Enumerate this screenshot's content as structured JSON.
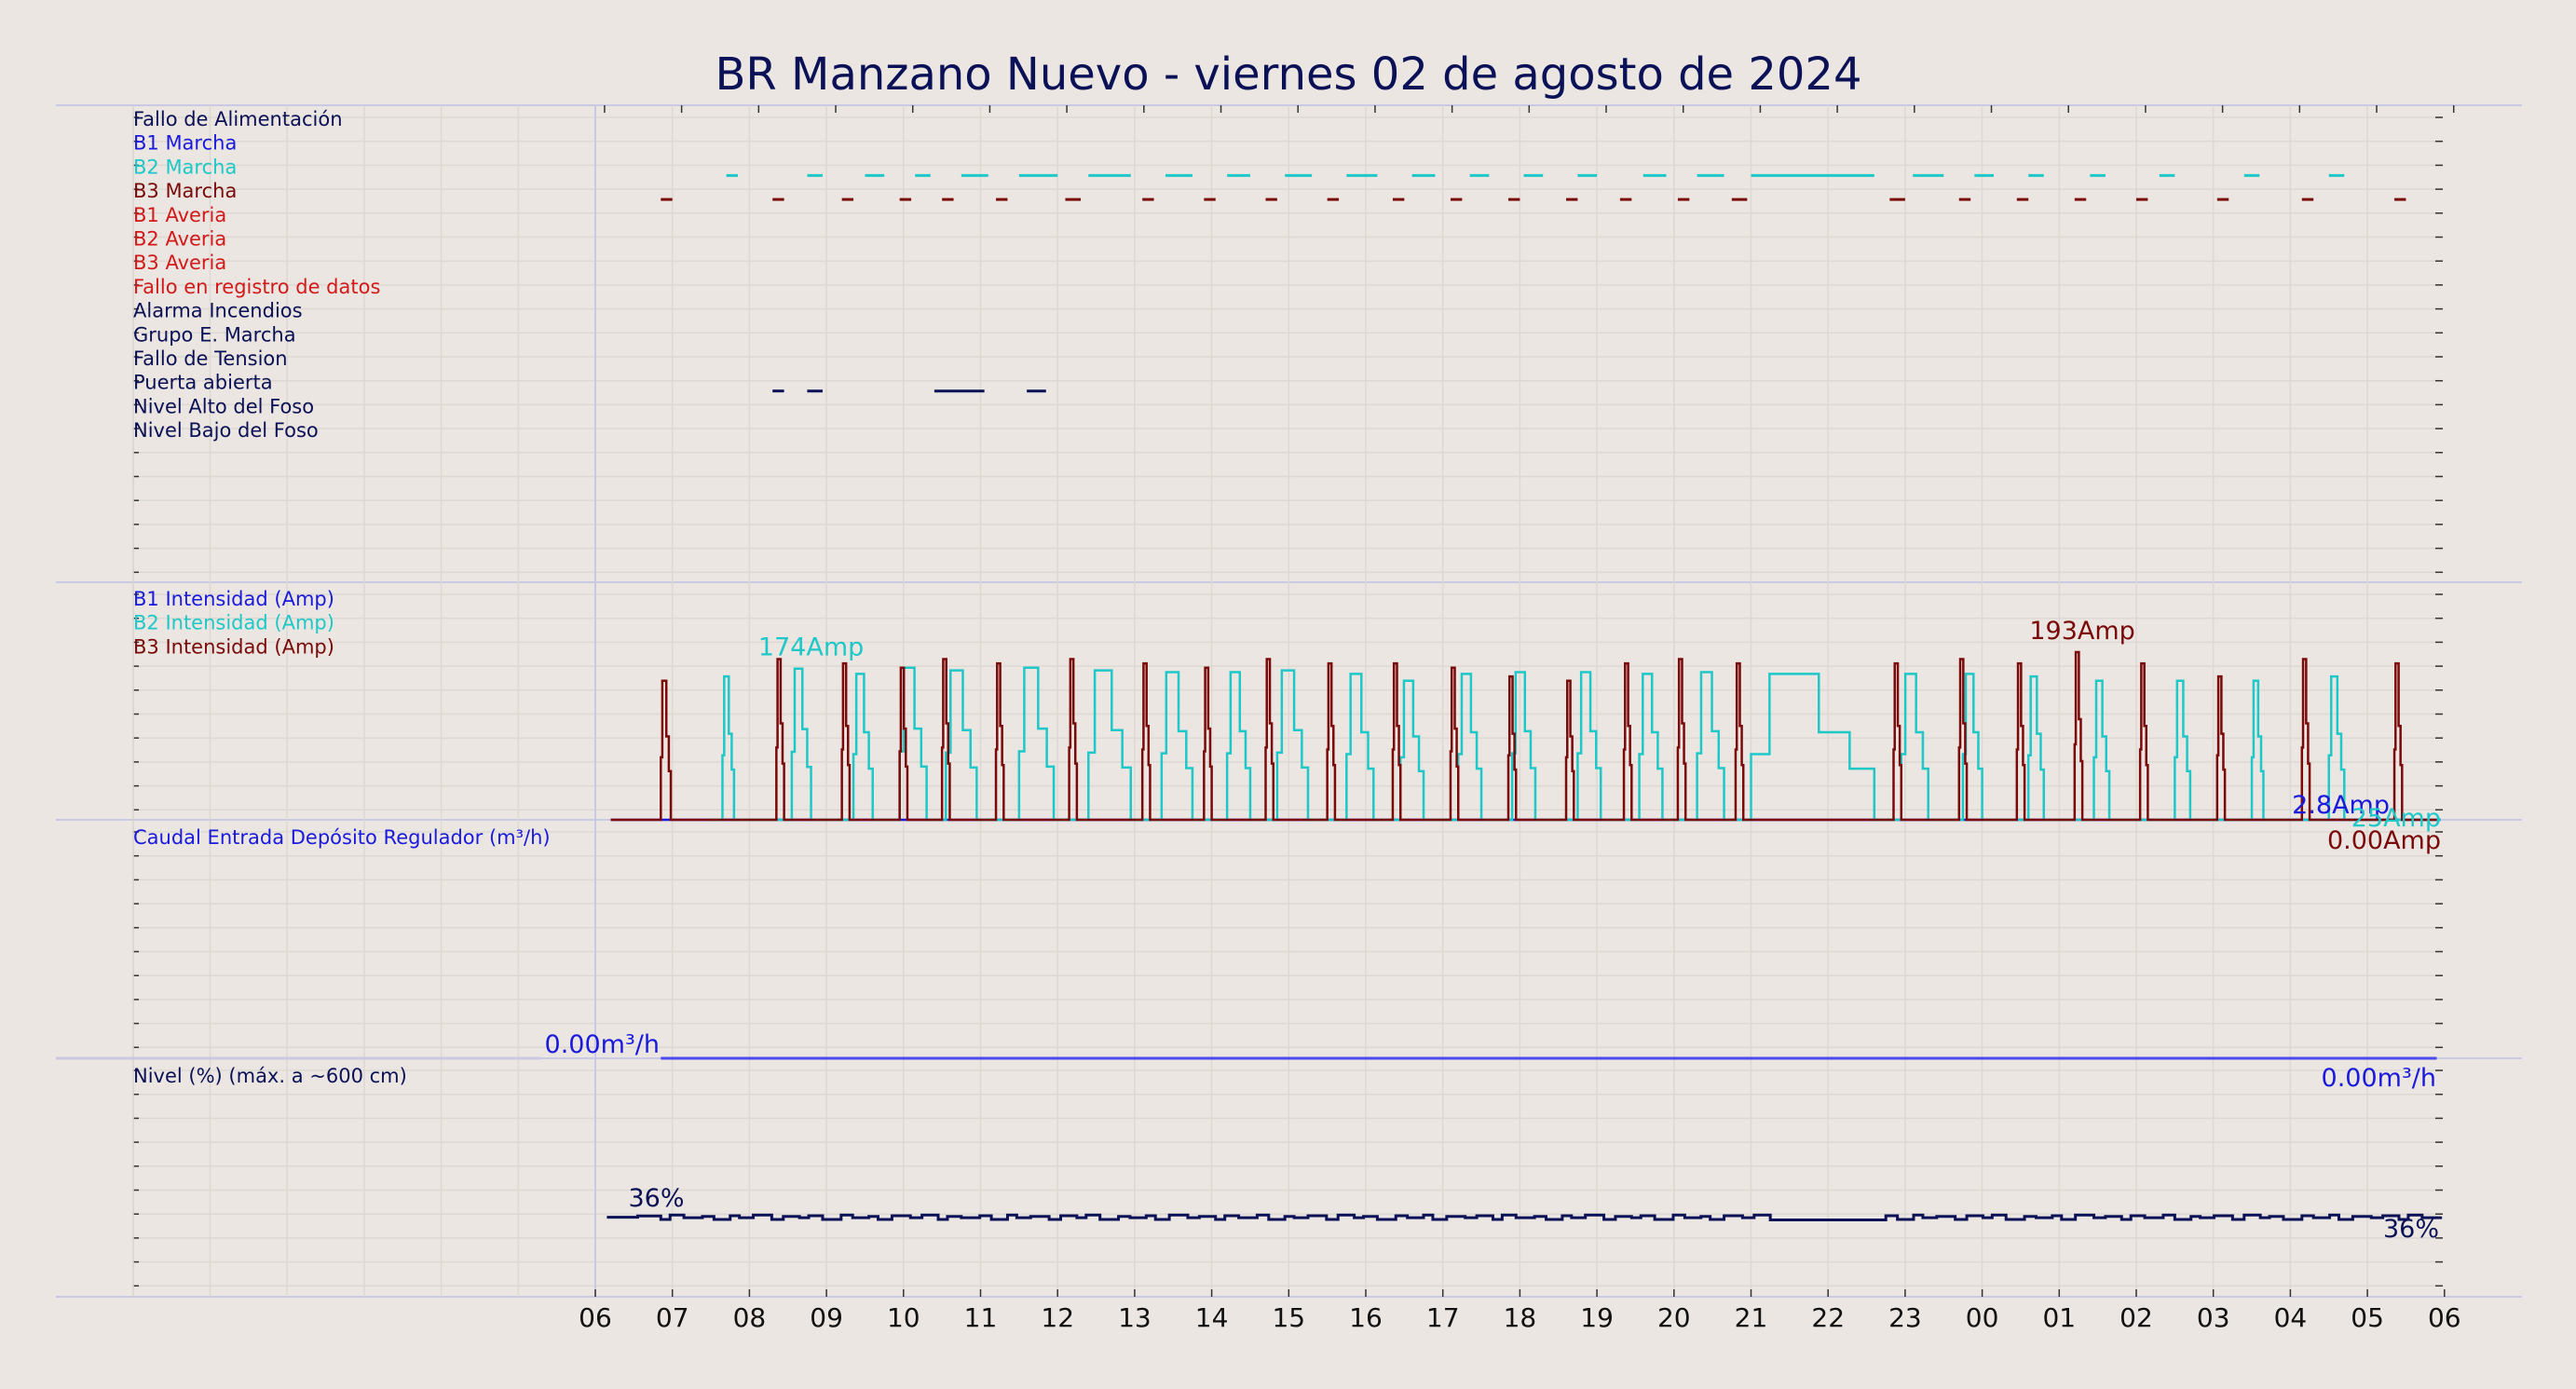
{
  "title": "BR Manzano Nuevo   -   viernes 02 de agosto de 2024",
  "colors": {
    "background": "#ebe6e1",
    "navy": "#0b1156",
    "blue": "#1a1adc",
    "cyan": "#1ec8c8",
    "darkred": "#7a0a0a",
    "red": "#d21a1a",
    "flow": "#4a4af0"
  },
  "x_axis": {
    "start_hour": 6,
    "tick_labels": [
      "06",
      "07",
      "08",
      "09",
      "10",
      "11",
      "12",
      "13",
      "14",
      "15",
      "16",
      "17",
      "18",
      "19",
      "20",
      "21",
      "22",
      "23",
      "00",
      "01",
      "02",
      "03",
      "04",
      "05",
      "06"
    ]
  },
  "chart_data": [
    {
      "type": "digital-timeline",
      "signals": [
        {
          "label": "Fallo de Alimentación",
          "color": "#0b1156",
          "events": []
        },
        {
          "label": "B1 Marcha",
          "color": "#1a1adc",
          "events": []
        },
        {
          "label": "B2 Marcha",
          "color": "#1ec8c8",
          "events": [
            [
              7.7,
              7.85
            ],
            [
              8.75,
              8.95
            ],
            [
              9.5,
              9.75
            ],
            [
              10.15,
              10.35
            ],
            [
              10.75,
              11.1
            ],
            [
              11.5,
              12.0
            ],
            [
              12.4,
              12.95
            ],
            [
              13.4,
              13.75
            ],
            [
              14.2,
              14.5
            ],
            [
              14.95,
              15.3
            ],
            [
              15.75,
              16.15
            ],
            [
              16.6,
              16.9
            ],
            [
              17.35,
              17.6
            ],
            [
              18.05,
              18.3
            ],
            [
              18.75,
              19.0
            ],
            [
              19.6,
              19.9
            ],
            [
              20.3,
              20.65
            ],
            [
              21.0,
              22.6
            ],
            [
              23.1,
              23.5
            ],
            [
              23.9,
              24.15
            ],
            [
              24.6,
              24.8
            ],
            [
              25.4,
              25.6
            ],
            [
              26.3,
              26.5
            ],
            [
              27.4,
              27.6
            ],
            [
              28.5,
              28.7
            ]
          ]
        },
        {
          "label": "B3 Marcha",
          "color": "#7a0a0a",
          "events": [
            [
              6.85,
              7.0
            ],
            [
              8.3,
              8.45
            ],
            [
              9.2,
              9.35
            ],
            [
              9.95,
              10.1
            ],
            [
              10.5,
              10.65
            ],
            [
              11.2,
              11.35
            ],
            [
              12.1,
              12.3
            ],
            [
              13.1,
              13.25
            ],
            [
              13.9,
              14.05
            ],
            [
              14.7,
              14.85
            ],
            [
              15.5,
              15.65
            ],
            [
              16.35,
              16.5
            ],
            [
              17.1,
              17.25
            ],
            [
              17.85,
              18.0
            ],
            [
              18.6,
              18.75
            ],
            [
              19.3,
              19.45
            ],
            [
              20.05,
              20.2
            ],
            [
              20.75,
              20.95
            ],
            [
              22.8,
              23.0
            ],
            [
              23.7,
              23.85
            ],
            [
              24.45,
              24.6
            ],
            [
              25.2,
              25.35
            ],
            [
              26.0,
              26.15
            ],
            [
              27.05,
              27.2
            ],
            [
              28.15,
              28.3
            ],
            [
              29.35,
              29.5
            ]
          ]
        },
        {
          "label": "B1 Averia",
          "color": "#d21a1a",
          "events": []
        },
        {
          "label": "B2 Averia",
          "color": "#d21a1a",
          "events": []
        },
        {
          "label": "B3 Averia",
          "color": "#d21a1a",
          "events": []
        },
        {
          "label": "Fallo en registro de datos",
          "color": "#d21a1a",
          "events": []
        },
        {
          "label": "Alarma Incendios",
          "color": "#0b1156",
          "events": []
        },
        {
          "label": "Grupo E. Marcha",
          "color": "#0b1156",
          "events": []
        },
        {
          "label": "Fallo de Tension",
          "color": "#0b1156",
          "events": []
        },
        {
          "label": "Puerta abierta",
          "color": "#0b1156",
          "events": [
            [
              8.3,
              8.45
            ],
            [
              8.75,
              8.95
            ],
            [
              10.4,
              11.05
            ],
            [
              11.6,
              11.85
            ]
          ]
        },
        {
          "label": "Nivel Alto del Foso",
          "color": "#0b1156",
          "events": []
        },
        {
          "label": "Nivel Bajo del Foso",
          "color": "#0b1156",
          "events": []
        }
      ]
    },
    {
      "type": "line",
      "ylim": [
        0,
        210
      ],
      "series": [
        {
          "name": "B1 Intensidad (Amp)",
          "color": "#1a1adc",
          "values": [
            [
              6.2,
              0
            ],
            [
              29.95,
              0
            ]
          ],
          "end_label": "2.8Amp"
        },
        {
          "name": "B2 Intensidad (Amp)",
          "color": "#1ec8c8",
          "peaks": [
            [
              7.65,
              7.8,
              165
            ],
            [
              8.55,
              8.8,
              174
            ],
            [
              9.35,
              9.6,
              168
            ],
            [
              9.95,
              10.3,
              175
            ],
            [
              10.55,
              10.95,
              172
            ],
            [
              11.5,
              11.95,
              175
            ],
            [
              12.4,
              12.95,
              172
            ],
            [
              13.35,
              13.75,
              170
            ],
            [
              14.2,
              14.5,
              170
            ],
            [
              14.85,
              15.25,
              172
            ],
            [
              15.75,
              16.1,
              168
            ],
            [
              16.45,
              16.75,
              160
            ],
            [
              17.2,
              17.5,
              168
            ],
            [
              17.9,
              18.2,
              170
            ],
            [
              18.75,
              19.05,
              170
            ],
            [
              19.55,
              19.85,
              168
            ],
            [
              20.3,
              20.65,
              170
            ],
            [
              21.0,
              22.6,
              168
            ],
            [
              22.95,
              23.3,
              168
            ],
            [
              23.75,
              24.0,
              168
            ],
            [
              24.6,
              24.8,
              165
            ],
            [
              25.45,
              25.65,
              160
            ],
            [
              26.5,
              26.7,
              160
            ],
            [
              27.5,
              27.65,
              160
            ],
            [
              28.5,
              28.7,
              165
            ]
          ],
          "end_label": "25Amp"
        },
        {
          "name": "B3 Intensidad (Amp)",
          "color": "#7a0a0a",
          "peaks": [
            [
              6.85,
              6.98,
              160
            ],
            [
              8.35,
              8.45,
              185
            ],
            [
              9.2,
              9.3,
              180
            ],
            [
              9.95,
              10.05,
              175
            ],
            [
              10.5,
              10.6,
              185
            ],
            [
              11.2,
              11.3,
              180
            ],
            [
              12.15,
              12.25,
              185
            ],
            [
              13.1,
              13.2,
              180
            ],
            [
              13.9,
              14.0,
              175
            ],
            [
              14.7,
              14.8,
              185
            ],
            [
              15.5,
              15.6,
              180
            ],
            [
              16.35,
              16.45,
              180
            ],
            [
              17.1,
              17.2,
              175
            ],
            [
              17.85,
              17.95,
              165
            ],
            [
              18.6,
              18.7,
              160
            ],
            [
              19.35,
              19.45,
              180
            ],
            [
              20.05,
              20.15,
              185
            ],
            [
              20.8,
              20.9,
              180
            ],
            [
              22.85,
              22.95,
              180
            ],
            [
              23.7,
              23.8,
              185
            ],
            [
              24.45,
              24.55,
              180
            ],
            [
              25.2,
              25.3,
              193
            ],
            [
              26.05,
              26.15,
              180
            ],
            [
              27.05,
              27.15,
              165
            ],
            [
              28.15,
              28.25,
              185
            ],
            [
              29.35,
              29.45,
              180
            ]
          ],
          "end_label": "0.00Amp"
        }
      ],
      "annotations": [
        {
          "text": "174Amp",
          "x": 8.8,
          "y": 174,
          "color": "#1ec8c8"
        },
        {
          "text": "193Amp",
          "x": 25.3,
          "y": 193,
          "color": "#7a0a0a"
        }
      ]
    },
    {
      "type": "line",
      "ylabel": "Caudal Entrada Depósito Regulador (m³/h)",
      "ylim": [
        0,
        100
      ],
      "series": [
        {
          "name": "Caudal",
          "color": "#4a4af0",
          "values": [
            [
              6.85,
              0
            ],
            [
              29.9,
              0
            ]
          ]
        }
      ],
      "start_label": "0.00m³/h",
      "end_label": "0.00m³/h"
    },
    {
      "type": "line",
      "ylabel": "Nivel (%) (máx. a ~600 cm)",
      "ylim": [
        0,
        100
      ],
      "series": [
        {
          "name": "Nivel",
          "color": "#0b1156",
          "base": 35.5
        }
      ],
      "start_label": "36%",
      "end_label": "36%"
    }
  ]
}
